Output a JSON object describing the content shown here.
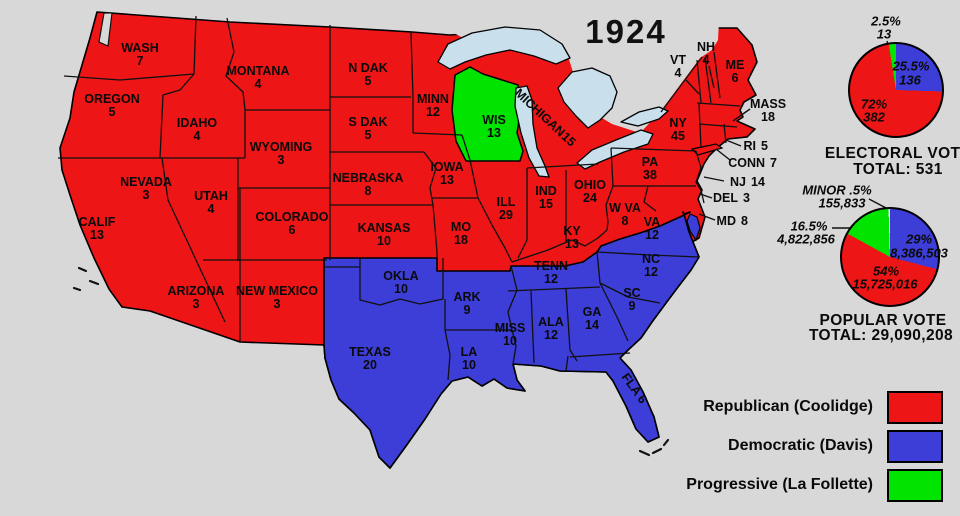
{
  "title": "1924",
  "colors": {
    "republican": "#ed1515",
    "democratic": "#3d3dd8",
    "progressive": "#00e400",
    "minor": "#e9e9e9",
    "water": "#c9e0ec",
    "background": "#d8d8d8"
  },
  "map": {
    "states": [
      {
        "name": "WASH",
        "votes": 7,
        "party": "R"
      },
      {
        "name": "OREGON",
        "votes": 5,
        "party": "R"
      },
      {
        "name": "CALIF",
        "votes": 13,
        "party": "R"
      },
      {
        "name": "NEVADA",
        "votes": 3,
        "party": "R"
      },
      {
        "name": "IDAHO",
        "votes": 4,
        "party": "R"
      },
      {
        "name": "MONTANA",
        "votes": 4,
        "party": "R"
      },
      {
        "name": "WYOMING",
        "votes": 3,
        "party": "R"
      },
      {
        "name": "UTAH",
        "votes": 4,
        "party": "R"
      },
      {
        "name": "COLORADO",
        "votes": 6,
        "party": "R"
      },
      {
        "name": "ARIZONA",
        "votes": 3,
        "party": "R"
      },
      {
        "name": "NEW MEXICO",
        "votes": 3,
        "party": "R"
      },
      {
        "name": "N DAK",
        "votes": 5,
        "party": "R"
      },
      {
        "name": "S DAK",
        "votes": 5,
        "party": "R"
      },
      {
        "name": "NEBRASKA",
        "votes": 8,
        "party": "R"
      },
      {
        "name": "KANSAS",
        "votes": 10,
        "party": "R"
      },
      {
        "name": "OKLA",
        "votes": 10,
        "party": "D"
      },
      {
        "name": "TEXAS",
        "votes": 20,
        "party": "D"
      },
      {
        "name": "MINN",
        "votes": 12,
        "party": "R"
      },
      {
        "name": "IOWA",
        "votes": 13,
        "party": "R"
      },
      {
        "name": "MO",
        "votes": 18,
        "party": "R"
      },
      {
        "name": "ARK",
        "votes": 9,
        "party": "D"
      },
      {
        "name": "LA",
        "votes": 10,
        "party": "D"
      },
      {
        "name": "WIS",
        "votes": 13,
        "party": "P"
      },
      {
        "name": "ILL",
        "votes": 29,
        "party": "R"
      },
      {
        "name": "IND",
        "votes": 15,
        "party": "R"
      },
      {
        "name": "OHIO",
        "votes": 24,
        "party": "R"
      },
      {
        "name": "MICHIGAN",
        "votes": 15,
        "party": "R"
      },
      {
        "name": "KY",
        "votes": 13,
        "party": "R"
      },
      {
        "name": "TENN",
        "votes": 12,
        "party": "D"
      },
      {
        "name": "MISS",
        "votes": 10,
        "party": "D"
      },
      {
        "name": "ALA",
        "votes": 12,
        "party": "D"
      },
      {
        "name": "GA",
        "votes": 14,
        "party": "D"
      },
      {
        "name": "SC",
        "votes": 9,
        "party": "D"
      },
      {
        "name": "NC",
        "votes": 12,
        "party": "D"
      },
      {
        "name": "VA",
        "votes": 12,
        "party": "D"
      },
      {
        "name": "W VA",
        "votes": 8,
        "party": "R"
      },
      {
        "name": "FLA",
        "votes": 6,
        "party": "D"
      },
      {
        "name": "PA",
        "votes": 38,
        "party": "R"
      },
      {
        "name": "NY",
        "votes": 45,
        "party": "R"
      },
      {
        "name": "ME",
        "votes": 6,
        "party": "R"
      },
      {
        "name": "VT",
        "votes": 4,
        "party": "R"
      },
      {
        "name": "NH",
        "votes": 4,
        "party": "R"
      },
      {
        "name": "MASS",
        "votes": 18,
        "party": "R"
      },
      {
        "name": "RI",
        "votes": 5,
        "party": "R"
      },
      {
        "name": "CONN",
        "votes": 7,
        "party": "R"
      },
      {
        "name": "NJ",
        "votes": 14,
        "party": "R"
      },
      {
        "name": "DEL",
        "votes": 3,
        "party": "R"
      },
      {
        "name": "MD",
        "votes": 8,
        "party": "R"
      }
    ]
  },
  "electoral": {
    "title": "ELECTORAL  VOTE",
    "total": "TOTAL:  531",
    "slices": [
      {
        "pct": "72%",
        "value": "382"
      },
      {
        "pct": "25.5%",
        "value": "136"
      },
      {
        "pct": "2.5%",
        "value": "13"
      }
    ]
  },
  "popular": {
    "title": "POPULAR  VOTE",
    "total": "TOTAL:  29,090,208",
    "slices": [
      {
        "pct": "54%",
        "value": "15,725,016"
      },
      {
        "pct": "29%",
        "value": "8,386,503"
      },
      {
        "pct": "16.5%",
        "value": "4,822,856"
      },
      {
        "pct": "MINOR .5%",
        "value": "155,833"
      }
    ]
  },
  "legend": {
    "items": [
      {
        "label": "Republican (Coolidge)",
        "color": "#ed1515"
      },
      {
        "label": "Democratic (Davis)",
        "color": "#3d3dd8"
      },
      {
        "label": "Progressive (La Follette)",
        "color": "#00e400"
      }
    ]
  },
  "chart_data": [
    {
      "type": "pie",
      "title": "ELECTORAL VOTE",
      "total": 531,
      "labels": [
        "Republican (Coolidge)",
        "Democratic (Davis)",
        "Progressive (La Follette)"
      ],
      "values": [
        382,
        136,
        13
      ],
      "percents": [
        72,
        25.5,
        2.5
      ],
      "colors": [
        "#ed1515",
        "#3d3dd8",
        "#00e400"
      ],
      "gradient": [
        [
          "#3d3dd8",
          25.5
        ],
        [
          "#ed1515",
          72
        ],
        [
          "#00e400",
          2.5
        ]
      ]
    },
    {
      "type": "pie",
      "title": "POPULAR VOTE",
      "total": 29090208,
      "labels": [
        "Republican (Coolidge)",
        "Democratic (Davis)",
        "Progressive (La Follette)",
        "Minor"
      ],
      "values": [
        15725016,
        8386503,
        4822856,
        155833
      ],
      "percents": [
        54,
        29,
        16.5,
        0.5
      ],
      "colors": [
        "#ed1515",
        "#3d3dd8",
        "#00e400",
        "#e9e9e9"
      ],
      "gradient": [
        [
          "#3d3dd8",
          29
        ],
        [
          "#ed1515",
          54
        ],
        [
          "#00e400",
          16.5
        ],
        [
          "#e9e9e9",
          0.5
        ]
      ]
    }
  ]
}
